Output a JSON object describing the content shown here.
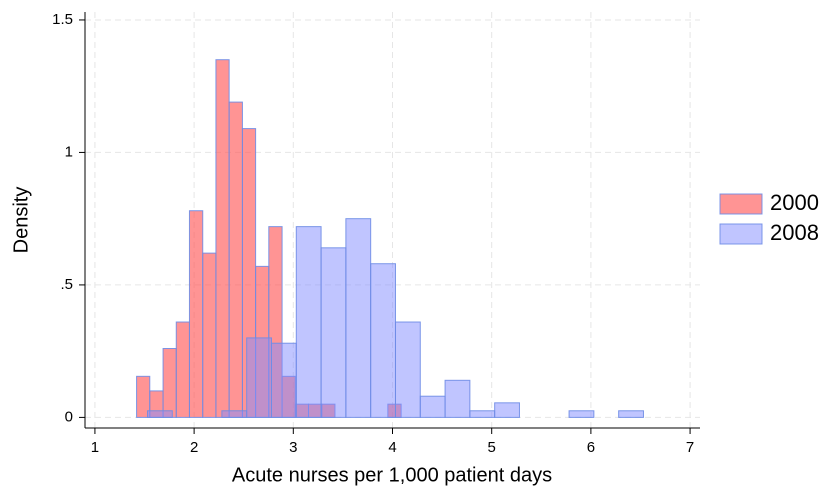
{
  "chart_data": {
    "type": "histogram",
    "xlabel": "Acute nurses per 1,000 patient days",
    "ylabel": "Density",
    "xlim": [
      0.9,
      7.1
    ],
    "ylim": [
      -0.04,
      1.53
    ],
    "xticks": [
      1,
      2,
      3,
      4,
      5,
      6,
      7
    ],
    "yticks": [
      0,
      {
        "value": 0.5,
        "label": ".5"
      },
      1,
      1.5
    ],
    "grid": true,
    "legend": "right",
    "series": [
      {
        "name": "2000",
        "color": "rgba(255,90,90,0.65)",
        "bins": [
          1.42,
          1.553,
          1.687,
          1.82,
          1.953,
          2.087,
          2.22,
          2.353,
          2.487,
          2.62,
          2.753,
          2.887,
          3.02,
          3.153,
          3.287,
          3.42,
          3.553,
          3.687,
          3.82,
          3.953,
          4.087
        ],
        "values": [
          0.155,
          0.1,
          0.26,
          0.36,
          0.78,
          0.62,
          1.35,
          1.19,
          1.09,
          0.57,
          0.72,
          0.155,
          0.05,
          0.05,
          0.05,
          0,
          0,
          0,
          0,
          0.05
        ]
      },
      {
        "name": "2008",
        "color": "rgba(130,140,255,0.5)",
        "bins": [
          1.53,
          1.78,
          2.03,
          2.28,
          2.53,
          2.78,
          3.03,
          3.28,
          3.53,
          3.78,
          4.03,
          4.28,
          4.53,
          4.78,
          5.03,
          5.28,
          5.53,
          5.78,
          6.03,
          6.28,
          6.53
        ],
        "values": [
          0.025,
          0,
          0,
          0.025,
          0.3,
          0.28,
          0.72,
          0.64,
          0.75,
          0.58,
          0.36,
          0.08,
          0.14,
          0.025,
          0.055,
          0,
          0,
          0.025,
          0,
          0.025
        ]
      }
    ]
  }
}
